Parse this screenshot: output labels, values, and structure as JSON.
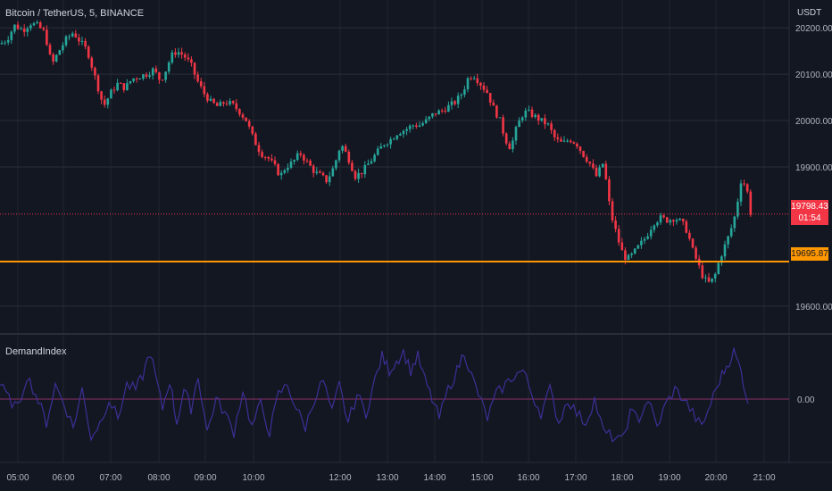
{
  "header": {
    "title": "Bitcoin / TetherUS, 5, BINANCE",
    "unit": "USDT",
    "indicator": "DemandIndex"
  },
  "price_tag": {
    "price": "19798.43",
    "countdown": "01:54"
  },
  "level_tag": {
    "price": "19695.87"
  },
  "colors": {
    "background": "#131722",
    "grid": "#2a2e39",
    "up": "#26a69a",
    "down": "#f23645",
    "level_line": "#ff9800",
    "indicator": "#3d2f96",
    "zero_line": "#8a2f66"
  },
  "chart_data": [
    {
      "type": "candlestick",
      "title": "Bitcoin / TetherUS, 5, BINANCE",
      "y_unit": "USDT",
      "ylim": [
        19540,
        20260
      ],
      "y_ticks": [
        "20200.00",
        "20100.00",
        "20000.00",
        "19900.00",
        "19600.00"
      ],
      "x_ticks": [
        "05:00",
        "06:00",
        "07:00",
        "08:00",
        "09:00",
        "10:00",
        "12:00",
        "13:00",
        "14:00",
        "15:00",
        "16:00",
        "17:00",
        "18:00",
        "19:00",
        "20:00",
        "21:00"
      ],
      "grid": true,
      "horizontal_line": 19695.87,
      "last_price": 19798.43,
      "path": [
        [
          0,
          20165
        ],
        [
          8,
          20175
        ],
        [
          16,
          20205
        ],
        [
          26,
          20195
        ],
        [
          34,
          20210
        ],
        [
          42,
          20205
        ],
        [
          50,
          20190
        ],
        [
          58,
          20120
        ],
        [
          66,
          20150
        ],
        [
          74,
          20175
        ],
        [
          82,
          20190
        ],
        [
          90,
          20170
        ],
        [
          98,
          20150
        ],
        [
          104,
          20110
        ],
        [
          110,
          20070
        ],
        [
          116,
          20030
        ],
        [
          124,
          20060
        ],
        [
          132,
          20080
        ],
        [
          140,
          20070
        ],
        [
          148,
          20090
        ],
        [
          156,
          20095
        ],
        [
          164,
          20100
        ],
        [
          172,
          20110
        ],
        [
          180,
          20085
        ],
        [
          186,
          20110
        ],
        [
          192,
          20140
        ],
        [
          198,
          20150
        ],
        [
          206,
          20140
        ],
        [
          214,
          20120
        ],
        [
          220,
          20090
        ],
        [
          228,
          20060
        ],
        [
          236,
          20040
        ],
        [
          244,
          20030
        ],
        [
          252,
          20040
        ],
        [
          260,
          20035
        ],
        [
          268,
          20020
        ],
        [
          276,
          20000
        ],
        [
          284,
          19960
        ],
        [
          292,
          19930
        ],
        [
          300,
          19920
        ],
        [
          308,
          19900
        ],
        [
          314,
          19880
        ],
        [
          320,
          19900
        ],
        [
          328,
          19910
        ],
        [
          336,
          19930
        ],
        [
          344,
          19910
        ],
        [
          352,
          19890
        ],
        [
          360,
          19880
        ],
        [
          366,
          19870
        ],
        [
          374,
          19900
        ],
        [
          382,
          19950
        ],
        [
          390,
          19920
        ],
        [
          398,
          19880
        ],
        [
          406,
          19890
        ],
        [
          414,
          19910
        ],
        [
          422,
          19930
        ],
        [
          430,
          19950
        ],
        [
          438,
          19960
        ],
        [
          446,
          19975
        ],
        [
          454,
          19980
        ],
        [
          462,
          19990
        ],
        [
          470,
          19990
        ],
        [
          478,
          20000
        ],
        [
          486,
          20015
        ],
        [
          494,
          20020
        ],
        [
          502,
          20030
        ],
        [
          510,
          20040
        ],
        [
          518,
          20060
        ],
        [
          524,
          20090
        ],
        [
          530,
          20100
        ],
        [
          538,
          20080
        ],
        [
          546,
          20060
        ],
        [
          552,
          20030
        ],
        [
          560,
          20000
        ],
        [
          566,
          19960
        ],
        [
          572,
          19940
        ],
        [
          578,
          19980
        ],
        [
          584,
          20010
        ],
        [
          590,
          20020
        ],
        [
          598,
          20010
        ],
        [
          606,
          20000
        ],
        [
          614,
          19990
        ],
        [
          622,
          19960
        ],
        [
          630,
          19950
        ],
        [
          638,
          19960
        ],
        [
          646,
          19950
        ],
        [
          652,
          19930
        ],
        [
          660,
          19910
        ],
        [
          668,
          19880
        ],
        [
          676,
          19910
        ],
        [
          684,
          19800
        ],
        [
          690,
          19760
        ],
        [
          696,
          19720
        ],
        [
          702,
          19700
        ],
        [
          708,
          19710
        ],
        [
          716,
          19730
        ],
        [
          724,
          19750
        ],
        [
          732,
          19780
        ],
        [
          740,
          19790
        ],
        [
          748,
          19785
        ],
        [
          756,
          19790
        ],
        [
          764,
          19780
        ],
        [
          770,
          19760
        ],
        [
          776,
          19720
        ],
        [
          782,
          19690
        ],
        [
          788,
          19660
        ],
        [
          794,
          19650
        ],
        [
          800,
          19660
        ],
        [
          806,
          19700
        ],
        [
          812,
          19730
        ],
        [
          818,
          19760
        ],
        [
          824,
          19800
        ],
        [
          830,
          19870
        ],
        [
          836,
          19860
        ],
        [
          841,
          19798.43
        ]
      ],
      "series": [
        {
          "name": "",
          "close": 19798.43
        }
      ]
    },
    {
      "type": "line",
      "title": "DemandIndex",
      "y_ticks": [
        "0.00"
      ],
      "zero_line": 0,
      "ylim": [
        -1.3,
        1.3
      ],
      "points": [
        [
          0,
          0.3
        ],
        [
          10,
          0.0
        ],
        [
          20,
          -0.2
        ],
        [
          30,
          0.5
        ],
        [
          40,
          0.1
        ],
        [
          52,
          -0.5
        ],
        [
          62,
          0.3
        ],
        [
          72,
          -0.1
        ],
        [
          82,
          -0.6
        ],
        [
          92,
          0.2
        ],
        [
          102,
          -0.8
        ],
        [
          112,
          -0.5
        ],
        [
          122,
          0.0
        ],
        [
          132,
          -0.4
        ],
        [
          142,
          0.3
        ],
        [
          152,
          0.2
        ],
        [
          160,
          0.5
        ],
        [
          168,
          1.0
        ],
        [
          174,
          0.5
        ],
        [
          182,
          -0.2
        ],
        [
          190,
          0.4
        ],
        [
          198,
          -0.5
        ],
        [
          206,
          0.2
        ],
        [
          214,
          -0.2
        ],
        [
          222,
          0.5
        ],
        [
          232,
          -0.7
        ],
        [
          242,
          0.0
        ],
        [
          252,
          -0.3
        ],
        [
          262,
          -0.7
        ],
        [
          272,
          0.2
        ],
        [
          282,
          -0.6
        ],
        [
          292,
          -0.1
        ],
        [
          302,
          -0.7
        ],
        [
          312,
          0.1
        ],
        [
          322,
          0.3
        ],
        [
          332,
          -0.2
        ],
        [
          342,
          -0.6
        ],
        [
          352,
          0.0
        ],
        [
          362,
          0.4
        ],
        [
          372,
          -0.3
        ],
        [
          380,
          0.3
        ],
        [
          390,
          -0.5
        ],
        [
          400,
          0.1
        ],
        [
          410,
          -0.3
        ],
        [
          420,
          0.4
        ],
        [
          428,
          0.9
        ],
        [
          436,
          0.6
        ],
        [
          444,
          0.8
        ],
        [
          452,
          1.0
        ],
        [
          460,
          0.6
        ],
        [
          468,
          0.9
        ],
        [
          476,
          0.4
        ],
        [
          484,
          0.0
        ],
        [
          492,
          -0.4
        ],
        [
          502,
          0.2
        ],
        [
          512,
          0.6
        ],
        [
          520,
          1.0
        ],
        [
          528,
          0.5
        ],
        [
          536,
          0.1
        ],
        [
          546,
          -0.4
        ],
        [
          556,
          0.1
        ],
        [
          566,
          0.3
        ],
        [
          576,
          0.5
        ],
        [
          586,
          0.6
        ],
        [
          596,
          0.1
        ],
        [
          606,
          -0.3
        ],
        [
          616,
          0.2
        ],
        [
          626,
          -0.5
        ],
        [
          636,
          0.0
        ],
        [
          646,
          -0.3
        ],
        [
          656,
          -0.5
        ],
        [
          666,
          0.0
        ],
        [
          676,
          -0.7
        ],
        [
          686,
          -0.8
        ],
        [
          696,
          -0.9
        ],
        [
          706,
          -0.3
        ],
        [
          716,
          -0.4
        ],
        [
          726,
          0.0
        ],
        [
          736,
          -0.6
        ],
        [
          746,
          -0.1
        ],
        [
          756,
          0.2
        ],
        [
          766,
          0.0
        ],
        [
          776,
          -0.3
        ],
        [
          786,
          -0.6
        ],
        [
          796,
          -0.1
        ],
        [
          806,
          0.4
        ],
        [
          814,
          0.7
        ],
        [
          822,
          1.0
        ],
        [
          830,
          0.6
        ],
        [
          838,
          -0.1
        ]
      ]
    }
  ]
}
